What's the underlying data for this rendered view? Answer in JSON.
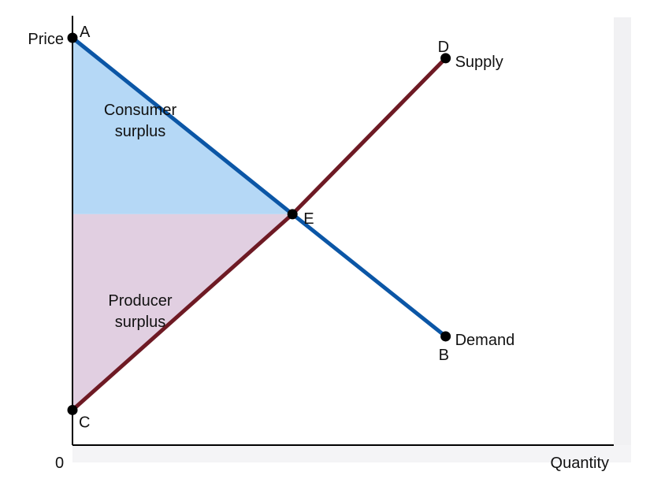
{
  "chart_data": {
    "type": "line",
    "title": "",
    "xlabel": "Quantity",
    "ylabel": "Price",
    "origin_label": "0",
    "xlim": [
      0,
      10
    ],
    "ylim": [
      0,
      10
    ],
    "grid": false,
    "series": [
      {
        "name": "Demand",
        "color": "#0b56a6",
        "points": [
          {
            "x": 0,
            "y": 9.4,
            "label": "A"
          },
          {
            "x": 3.49,
            "y": 5.33,
            "label": "E"
          },
          {
            "x": 5.92,
            "y": 2.51,
            "label": "B"
          }
        ]
      },
      {
        "name": "Supply",
        "color": "#6e1a24",
        "points": [
          {
            "x": 0,
            "y": 0.81,
            "label": "C"
          },
          {
            "x": 3.49,
            "y": 5.33,
            "label": "E"
          },
          {
            "x": 5.92,
            "y": 8.93,
            "label": "D"
          }
        ]
      }
    ],
    "regions": [
      {
        "name": "Consumer surplus",
        "lines": [
          "Consumer",
          "surplus"
        ],
        "color": "#b5d8f6",
        "polygon": [
          [
            0,
            9.4
          ],
          [
            3.49,
            5.33
          ],
          [
            0,
            5.33
          ]
        ]
      },
      {
        "name": "Producer surplus",
        "lines": [
          "Producer",
          "surplus"
        ],
        "color": "#e1cfe1",
        "polygon": [
          [
            0,
            5.33
          ],
          [
            3.49,
            5.33
          ],
          [
            0,
            0.81
          ]
        ]
      }
    ]
  }
}
